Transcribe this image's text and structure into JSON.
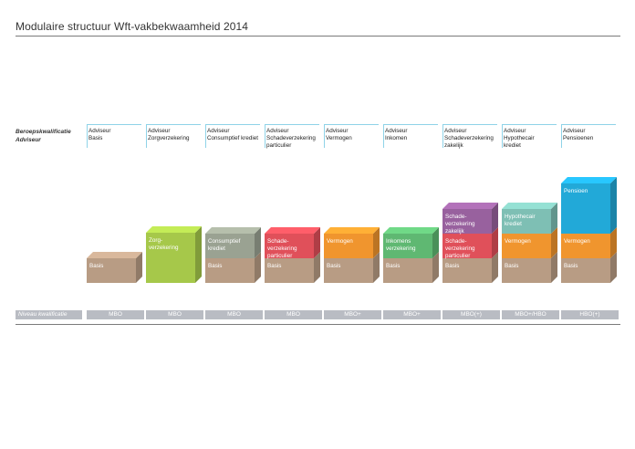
{
  "title": "Modulaire structuur Wft-vakbekwaamheid 2014",
  "row_labels": {
    "qualification": "Beroepskwalificatie",
    "advisor": "Adviseur",
    "level": "Niveau kwalificatie"
  },
  "colors": {
    "header_line": "#8fd3e8",
    "basis": "#b89c84",
    "zorg": "#a6c84a",
    "consumptief": "#9aa292",
    "schade": "#e0505a",
    "vermogen": "#f0952e",
    "inkomens": "#5fb872",
    "schade_zakelijk": "#98619e",
    "hypothecair": "#7ebfb4",
    "pensioen": "#22a9d8",
    "level_bg": "#b9bcc3"
  },
  "columns": [
    {
      "header": "Adviseur\nBasis",
      "level": "MBO",
      "blocks": [
        {
          "label": "Basis",
          "color_key": "basis"
        }
      ]
    },
    {
      "header": "Adviseur\nZorgverzekering",
      "level": "MBO",
      "blocks": [
        {
          "label": "Zorg-\nverzekering",
          "color_key": "zorg",
          "tall": true
        }
      ]
    },
    {
      "header": "Adviseur\nConsumptief krediet",
      "level": "MBO",
      "blocks": [
        {
          "label": "Basis",
          "color_key": "basis"
        },
        {
          "label": "Consumptief\nkrediet",
          "color_key": "consumptief"
        }
      ]
    },
    {
      "header": "Adviseur\nSchadeverzekering\nparticulier",
      "level": "MBO",
      "blocks": [
        {
          "label": "Basis",
          "color_key": "basis"
        },
        {
          "label": "Schade-\nverzekering\nparticulier",
          "color_key": "schade"
        }
      ]
    },
    {
      "header": "Adviseur\nVermogen",
      "level": "MBO+",
      "blocks": [
        {
          "label": "Basis",
          "color_key": "basis"
        },
        {
          "label": "Vermogen",
          "color_key": "vermogen"
        }
      ]
    },
    {
      "header": "Adviseur\nInkomen",
      "level": "MBO+",
      "blocks": [
        {
          "label": "Basis",
          "color_key": "basis"
        },
        {
          "label": "Inkomens\nverzekering",
          "color_key": "inkomens"
        }
      ]
    },
    {
      "header": "Adviseur\nSchadeverzekering\nzakelijk",
      "level": "MBO(+)",
      "blocks": [
        {
          "label": "Basis",
          "color_key": "basis"
        },
        {
          "label": "Schade-\nverzekering\nparticulier",
          "color_key": "schade"
        },
        {
          "label": "Schade-\nverzekering\nzakelijk",
          "color_key": "schade_zakelijk"
        }
      ]
    },
    {
      "header": "Adviseur\nHypothecair\nkrediet",
      "level": "MBO+/HBO",
      "blocks": [
        {
          "label": "Basis",
          "color_key": "basis"
        },
        {
          "label": "Vermogen",
          "color_key": "vermogen"
        },
        {
          "label": "Hypothecair\nkrediet",
          "color_key": "hypothecair"
        }
      ]
    },
    {
      "header": "Adviseur\nPensioenen",
      "level": "HBO(+)",
      "blocks": [
        {
          "label": "Basis",
          "color_key": "basis"
        },
        {
          "label": "Vermogen",
          "color_key": "vermogen"
        },
        {
          "label": "Pensioen",
          "color_key": "pensioen",
          "tall": true
        }
      ]
    }
  ]
}
